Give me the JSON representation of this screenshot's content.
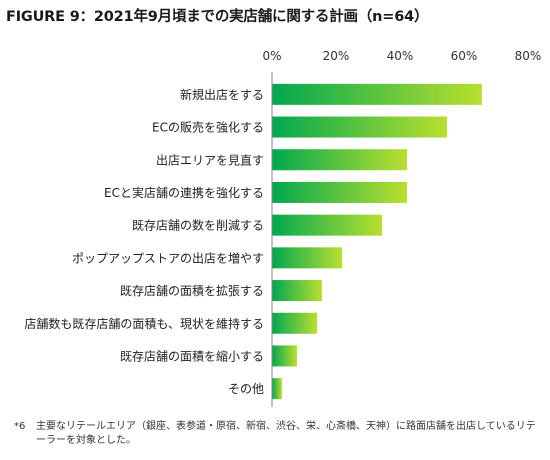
{
  "title": "FIGURE 9：2021年9月頃までの実店舗に関する計画（n=64）",
  "chart_data": {
    "type": "bar",
    "orientation": "horizontal",
    "categories": [
      "新規出店をする",
      "ECの販売を強化する",
      "出店エリアを見直す",
      "ECと実店舗の連携を強化する",
      "既存店舗の数を削減する",
      "ポップアップストアの出店を増やす",
      "既存店舗の面積を拡張する",
      "店舗数も既存店舗の面積も、現状を維持する",
      "既存店舗の面積を縮小する",
      "その他"
    ],
    "values": [
      65.6,
      54.7,
      42.2,
      42.2,
      34.4,
      21.9,
      15.6,
      14.1,
      7.8,
      3.1
    ],
    "xlim": [
      0,
      80
    ],
    "xticks": [
      "0%",
      "20%",
      "40%",
      "60%",
      "80%"
    ],
    "tick_values": [
      0,
      20,
      40,
      60,
      80
    ],
    "xaxis_position": "top",
    "grid": false,
    "colors": {
      "bar_start": "#00a84f",
      "bar_end": "#b9df2f",
      "axis": "#888888"
    }
  },
  "footnote": {
    "mark": "*6",
    "text": "主要なリテールエリア（銀座、表参道・原宿、新宿、渋谷、栄、心斎橋、天神）に路面店舗を出店しているリテーラーを対象とした。"
  }
}
